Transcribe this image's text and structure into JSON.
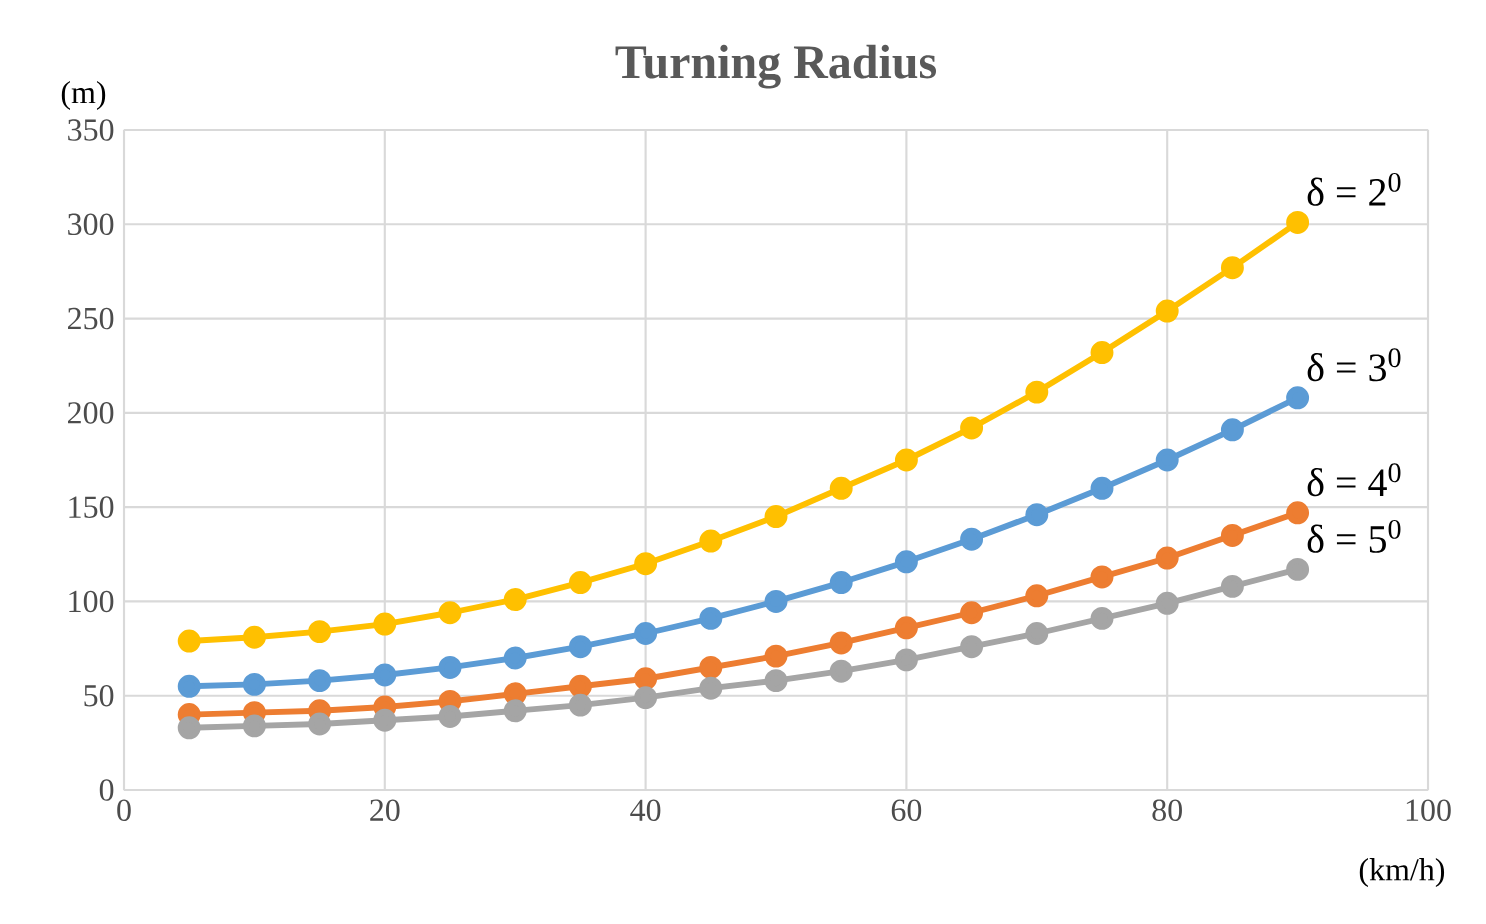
{
  "chart_data": {
    "type": "line",
    "title": "Turning Radius",
    "xlabel": "(km/h)",
    "ylabel": "(m)",
    "x": [
      5,
      10,
      15,
      20,
      25,
      30,
      35,
      40,
      45,
      50,
      55,
      60,
      65,
      70,
      75,
      80,
      85,
      90
    ],
    "xlim": [
      0,
      100
    ],
    "xticks": [
      0,
      20,
      40,
      60,
      80,
      100
    ],
    "ylim": [
      0,
      350
    ],
    "yticks": [
      0,
      50,
      100,
      150,
      200,
      250,
      300,
      350
    ],
    "grid": true,
    "legend": false,
    "marker": "circle",
    "line_style": "solid",
    "series": [
      {
        "name": "δ = 2$^{0}$",
        "color": "#ffc000",
        "values": [
          79,
          81,
          84,
          88,
          94,
          101,
          110,
          120,
          132,
          145,
          160,
          175,
          192,
          211,
          232,
          254,
          277,
          301
        ]
      },
      {
        "name": "δ = 3$^{0}$",
        "color": "#5b9bd5",
        "values": [
          55,
          56,
          58,
          61,
          65,
          70,
          76,
          83,
          91,
          100,
          110,
          121,
          133,
          146,
          160,
          175,
          191,
          208
        ]
      },
      {
        "name": "δ = 4$^{0}$",
        "color": "#ed7d31",
        "values": [
          40,
          41,
          42,
          44,
          47,
          51,
          55,
          59,
          65,
          71,
          78,
          86,
          94,
          103,
          113,
          123,
          135,
          147
        ]
      },
      {
        "name": "δ = 5$^{0}$",
        "color": "#a5a5a5",
        "values": [
          33,
          34,
          35,
          37,
          39,
          42,
          45,
          49,
          54,
          58,
          63,
          69,
          76,
          83,
          91,
          99,
          108,
          117
        ]
      }
    ]
  }
}
